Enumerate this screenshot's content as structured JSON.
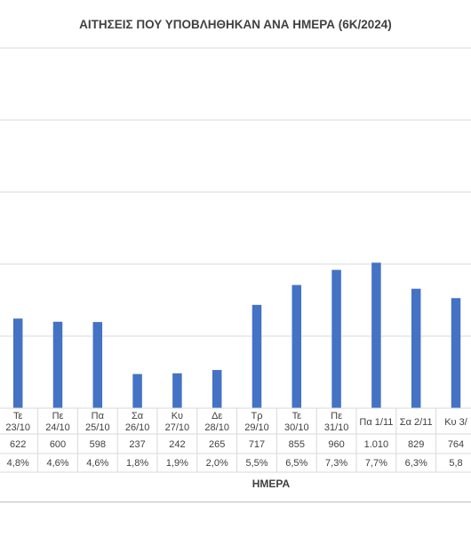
{
  "chart_data": {
    "type": "bar",
    "title": "ΑΙΤΗΣΕΙΣ ΠΟΥ ΥΠΟΒΛΗΘΗΚΑΝ ΑΝΑ ΗΜΕΡΑ (6Κ/2024)",
    "xlabel": "ΗΜΕΡΑ",
    "ylabel": "",
    "ylim": [
      0,
      2500
    ],
    "grid": true,
    "bar_color": "#4472c4",
    "categories": [
      {
        "line1": "",
        "line2": "",
        "value_label": "",
        "pct": ""
      },
      {
        "line1": "Τε",
        "line2": "23/10",
        "value_label": "622",
        "pct": "4,8%"
      },
      {
        "line1": "Πε",
        "line2": "24/10",
        "value_label": "600",
        "pct": "4,6%"
      },
      {
        "line1": "Πα",
        "line2": "25/10",
        "value_label": "598",
        "pct": "4,6%"
      },
      {
        "line1": "Σα",
        "line2": "26/10",
        "value_label": "237",
        "pct": "1,8%"
      },
      {
        "line1": "Κυ",
        "line2": "27/10",
        "value_label": "242",
        "pct": "1,9%"
      },
      {
        "line1": "Δε",
        "line2": "28/10",
        "value_label": "265",
        "pct": "2,0%"
      },
      {
        "line1": "Τρ",
        "line2": "29/10",
        "value_label": "717",
        "pct": "5,5%"
      },
      {
        "line1": "Τε",
        "line2": "30/10",
        "value_label": "855",
        "pct": "6,5%"
      },
      {
        "line1": "Πε",
        "line2": "31/10",
        "value_label": "960",
        "pct": "7,3%"
      },
      {
        "line1": "Πα 1/11",
        "line2": "",
        "value_label": "1.010",
        "pct": "7,7%"
      },
      {
        "line1": "Σα 2/11",
        "line2": "",
        "value_label": "829",
        "pct": "6,3%"
      },
      {
        "line1": "Κυ 3/",
        "line2": "",
        "value_label": "764",
        "pct": "5,8"
      }
    ],
    "values": [
      620,
      622,
      600,
      598,
      237,
      242,
      265,
      717,
      855,
      960,
      1010,
      829,
      764
    ]
  }
}
